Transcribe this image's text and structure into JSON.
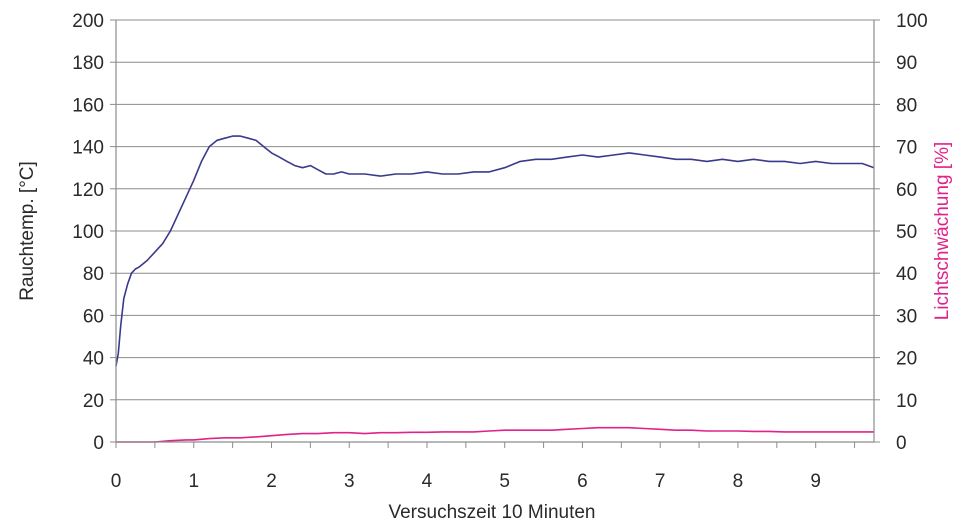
{
  "chart_data": {
    "type": "line",
    "xlabel": "Versuchszeit 10 Minuten",
    "ylabel_left": "Rauchtemp. [°C]",
    "ylabel_right": "Lichtschwächung [%]",
    "xlim": [
      0,
      9.75
    ],
    "ylim_left": [
      0,
      200
    ],
    "ylim_right": [
      0,
      100
    ],
    "x_ticks": [
      "0",
      "1",
      "2",
      "3",
      "4",
      "5",
      "6",
      "7",
      "8",
      "9"
    ],
    "y_left_ticks": [
      "0",
      "20",
      "40",
      "60",
      "80",
      "100",
      "120",
      "140",
      "160",
      "180",
      "200"
    ],
    "y_right_ticks": [
      "0",
      "10",
      "20",
      "30",
      "40",
      "50",
      "60",
      "70",
      "80",
      "90",
      "100"
    ],
    "grid": true,
    "colors": {
      "temperature": "#3a3a8c",
      "light": "#e0228a",
      "axis_right_title": "#e0228a",
      "grid": "#8c8c8c"
    },
    "series": [
      {
        "axis": "left",
        "color": "#3a3a8c",
        "x": [
          0.0,
          0.03,
          0.06,
          0.1,
          0.15,
          0.2,
          0.25,
          0.3,
          0.4,
          0.5,
          0.6,
          0.7,
          0.8,
          0.9,
          1.0,
          1.1,
          1.2,
          1.3,
          1.4,
          1.5,
          1.6,
          1.7,
          1.8,
          1.9,
          2.0,
          2.1,
          2.2,
          2.3,
          2.4,
          2.5,
          2.6,
          2.7,
          2.8,
          2.9,
          3.0,
          3.2,
          3.4,
          3.6,
          3.8,
          4.0,
          4.2,
          4.4,
          4.6,
          4.8,
          5.0,
          5.2,
          5.4,
          5.6,
          5.8,
          6.0,
          6.2,
          6.4,
          6.6,
          6.8,
          7.0,
          7.2,
          7.4,
          7.6,
          7.8,
          8.0,
          8.2,
          8.4,
          8.6,
          8.8,
          9.0,
          9.2,
          9.4,
          9.6,
          9.75
        ],
        "y": [
          36,
          42,
          55,
          68,
          75,
          80,
          82,
          83,
          86,
          90,
          94,
          100,
          108,
          116,
          124,
          133,
          140,
          143,
          144,
          145,
          145,
          144,
          143,
          140,
          137,
          135,
          133,
          131,
          130,
          131,
          129,
          127,
          127,
          128,
          127,
          127,
          126,
          127,
          127,
          128,
          127,
          127,
          128,
          128,
          130,
          133,
          134,
          134,
          135,
          136,
          135,
          136,
          137,
          136,
          135,
          134,
          134,
          133,
          134,
          133,
          134,
          133,
          133,
          132,
          133,
          132,
          132,
          132,
          130
        ]
      },
      {
        "axis": "right",
        "color": "#e0228a",
        "x": [
          0.0,
          0.3,
          0.5,
          0.7,
          0.9,
          1.0,
          1.2,
          1.4,
          1.6,
          1.8,
          2.0,
          2.2,
          2.4,
          2.6,
          2.8,
          3.0,
          3.2,
          3.4,
          3.6,
          3.8,
          4.0,
          4.2,
          4.4,
          4.6,
          4.8,
          5.0,
          5.2,
          5.4,
          5.6,
          5.8,
          6.0,
          6.2,
          6.4,
          6.6,
          6.8,
          7.0,
          7.2,
          7.4,
          7.6,
          7.8,
          8.0,
          8.2,
          8.4,
          8.6,
          8.8,
          9.0,
          9.2,
          9.4,
          9.6,
          9.75
        ],
        "y": [
          0,
          0,
          0,
          0.3,
          0.5,
          0.5,
          0.8,
          1,
          1,
          1.2,
          1.5,
          1.8,
          2,
          2,
          2.2,
          2.2,
          2,
          2.2,
          2.2,
          2.3,
          2.3,
          2.4,
          2.4,
          2.4,
          2.6,
          2.8,
          2.8,
          2.8,
          2.8,
          3,
          3.2,
          3.4,
          3.4,
          3.4,
          3.2,
          3,
          2.8,
          2.8,
          2.6,
          2.6,
          2.6,
          2.5,
          2.5,
          2.4,
          2.4,
          2.4,
          2.4,
          2.4,
          2.4,
          2.4
        ]
      }
    ]
  }
}
